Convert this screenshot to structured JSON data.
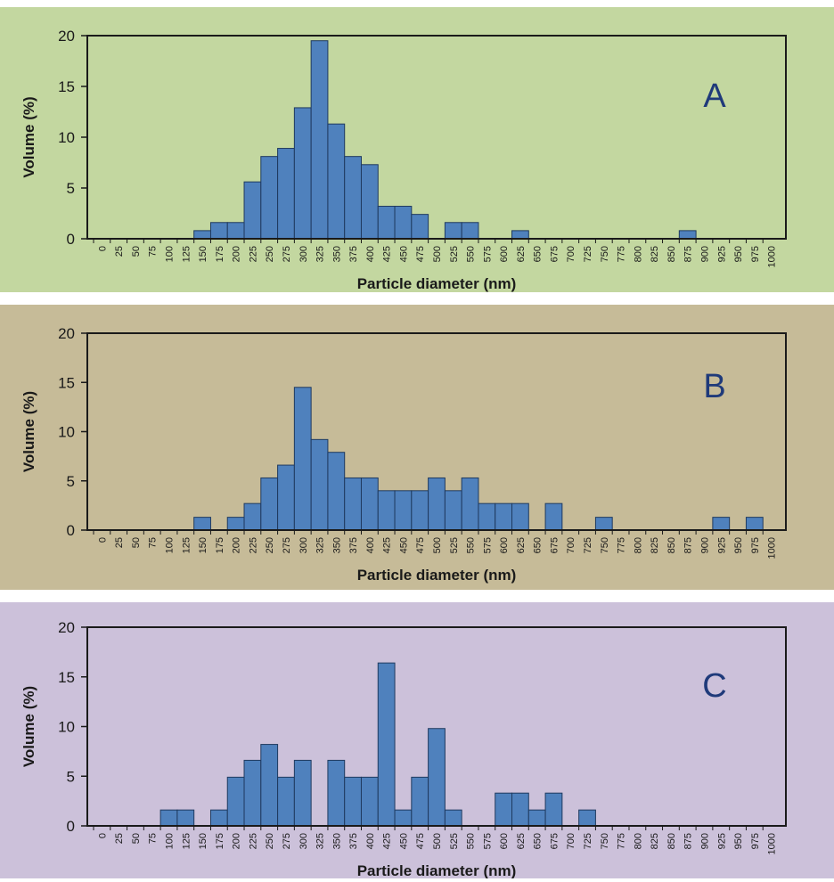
{
  "categories": [
    "0",
    "25",
    "50",
    "75",
    "100",
    "125",
    "150",
    "175",
    "200",
    "225",
    "250",
    "275",
    "300",
    "325",
    "350",
    "375",
    "400",
    "425",
    "450",
    "475",
    "500",
    "525",
    "550",
    "575",
    "600",
    "625",
    "650",
    "675",
    "700",
    "725",
    "750",
    "775",
    "800",
    "825",
    "850",
    "875",
    "900",
    "925",
    "950",
    "975",
    "1000"
  ],
  "colors": {
    "bar_fill": "#4f81bd",
    "bar_stroke": "#1f3a5f",
    "panel_A_bg": "#c3d7a0",
    "panel_B_bg": "#c6bb98",
    "panel_C_bg": "#ccc1da",
    "panel_letter": "#1f3a7a"
  },
  "chart_data": [
    {
      "type": "bar",
      "panel_label": "A",
      "xlabel": "Particle diameter (nm)",
      "ylabel": "Volume (%)",
      "ylim": [
        0,
        20
      ],
      "yticks": [
        "0",
        "5",
        "10",
        "15",
        "20"
      ],
      "grid": false,
      "values": [
        0,
        0,
        0,
        0,
        0,
        0,
        0.8,
        1.6,
        1.6,
        5.6,
        8.1,
        8.9,
        12.9,
        19.5,
        11.3,
        8.1,
        7.3,
        3.2,
        3.2,
        2.4,
        0,
        1.6,
        1.6,
        0,
        0,
        0.8,
        0,
        0,
        0,
        0,
        0,
        0,
        0,
        0,
        0,
        0.8,
        0,
        0,
        0,
        0,
        0
      ]
    },
    {
      "type": "bar",
      "panel_label": "B",
      "xlabel": "Particle diameter (nm)",
      "ylabel": "Volume (%)",
      "ylim": [
        0,
        20
      ],
      "yticks": [
        "0",
        "5",
        "10",
        "15",
        "20"
      ],
      "grid": false,
      "values": [
        0,
        0,
        0,
        0,
        0,
        0,
        1.3,
        0,
        1.3,
        2.7,
        5.3,
        6.6,
        14.5,
        9.2,
        7.9,
        5.3,
        5.3,
        4,
        4,
        4,
        5.3,
        4,
        5.3,
        2.7,
        2.7,
        2.7,
        0,
        2.7,
        0,
        0,
        1.3,
        0,
        0,
        0,
        0,
        0,
        0,
        1.3,
        0,
        1.3,
        0
      ]
    },
    {
      "type": "bar",
      "panel_label": "C",
      "xlabel": "Particle diameter (nm)",
      "ylabel": "Volume (%)",
      "ylim": [
        0,
        20
      ],
      "yticks": [
        "0",
        "5",
        "10",
        "15",
        "20"
      ],
      "grid": false,
      "values": [
        0,
        0,
        0,
        0,
        1.6,
        1.6,
        0,
        1.6,
        4.9,
        6.6,
        8.2,
        4.9,
        6.6,
        0,
        6.6,
        4.9,
        4.9,
        16.4,
        1.6,
        4.9,
        9.8,
        1.6,
        0,
        0,
        3.3,
        3.3,
        1.6,
        3.3,
        0,
        1.6,
        0,
        0,
        0,
        0,
        0,
        0,
        0,
        0,
        0,
        0,
        0
      ]
    }
  ]
}
